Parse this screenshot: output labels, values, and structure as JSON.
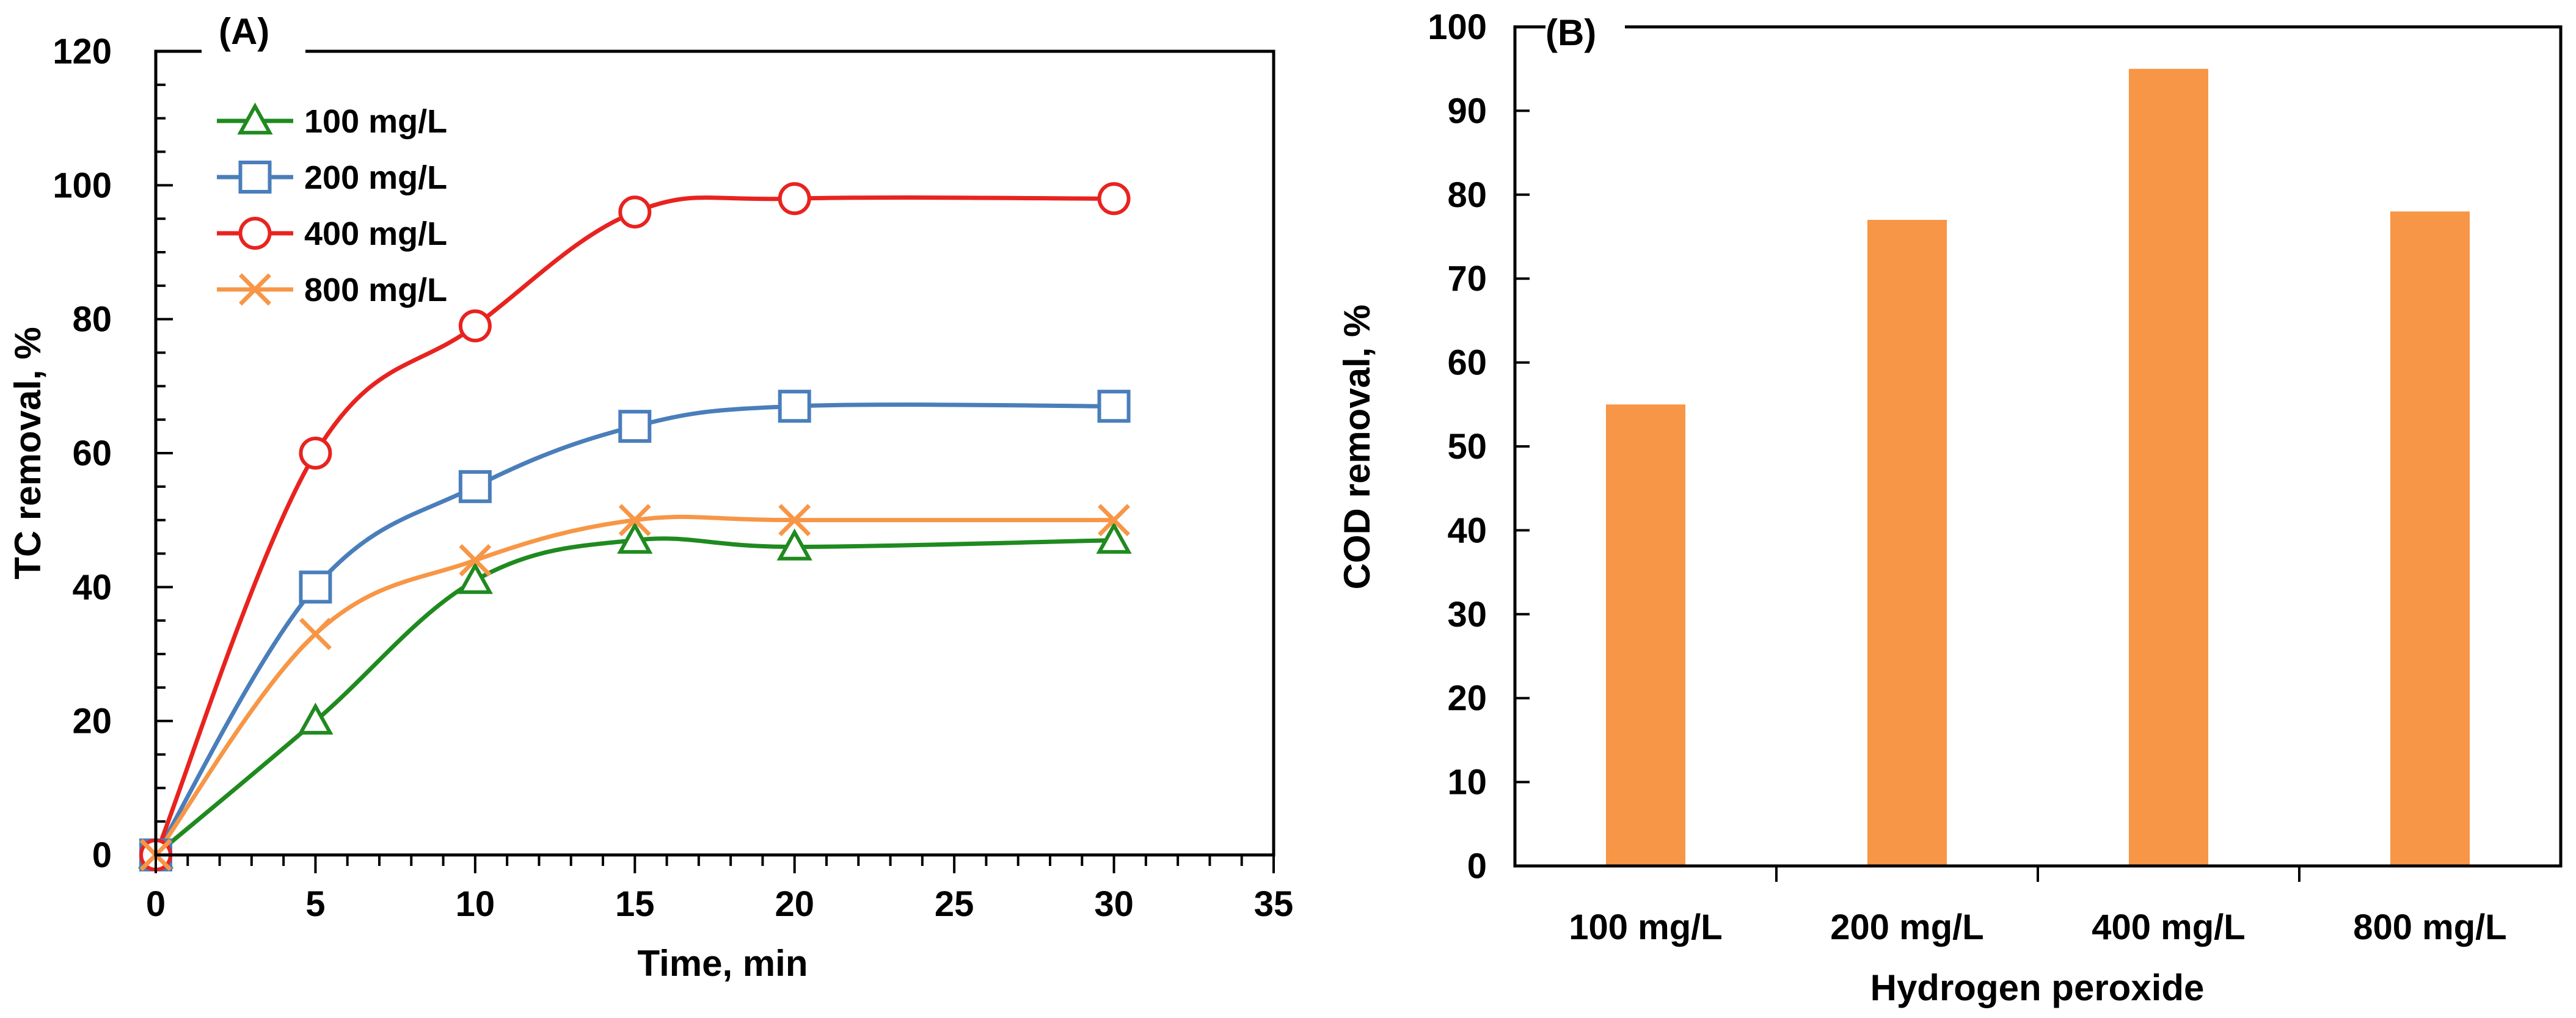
{
  "chart_data": [
    {
      "type": "line",
      "panel_label": "(A)",
      "xlabel": "Time, min",
      "ylabel": "TC removal, %",
      "xlim": [
        0,
        35
      ],
      "ylim": [
        0,
        120
      ],
      "x_ticks": [
        0,
        5,
        10,
        15,
        20,
        25,
        30,
        35
      ],
      "y_ticks": [
        0,
        20,
        40,
        60,
        80,
        100,
        120
      ],
      "x_tick_labels": [
        "0",
        "5",
        "10",
        "15",
        "20",
        "25",
        "30",
        "35"
      ],
      "y_tick_labels": [
        "0",
        "20",
        "40",
        "60",
        "80",
        "100",
        "120"
      ],
      "legend_position": "top-left",
      "x": [
        0,
        5,
        10,
        15,
        20,
        30
      ],
      "series": [
        {
          "name": "100 mg/L",
          "marker": "triangle",
          "color": "#1f8a1f",
          "values": [
            0,
            20,
            41,
            47,
            46,
            47
          ]
        },
        {
          "name": "200 mg/L",
          "marker": "square",
          "color": "#4a7ebb",
          "values": [
            0,
            40,
            55,
            64,
            67,
            67
          ]
        },
        {
          "name": "400 mg/L",
          "marker": "circle",
          "color": "#e8231f",
          "values": [
            0,
            60,
            79,
            96,
            98,
            98
          ]
        },
        {
          "name": "800 mg/L",
          "marker": "cross",
          "color": "#f79646",
          "values": [
            0,
            33,
            44,
            50,
            50,
            50
          ]
        }
      ]
    },
    {
      "type": "bar",
      "panel_label": "(B)",
      "xlabel": "Hydrogen peroxide",
      "ylabel": "COD removal, %",
      "ylim": [
        0,
        100
      ],
      "y_ticks": [
        0,
        10,
        20,
        30,
        40,
        50,
        60,
        70,
        80,
        90,
        100
      ],
      "y_tick_labels": [
        "0",
        "10",
        "20",
        "30",
        "40",
        "50",
        "60",
        "70",
        "80",
        "90",
        "100"
      ],
      "categories": [
        "100 mg/L",
        "200 mg/L",
        "400 mg/L",
        "800 mg/L"
      ],
      "values": [
        55,
        77,
        95,
        78
      ],
      "color": "#f79646"
    }
  ]
}
